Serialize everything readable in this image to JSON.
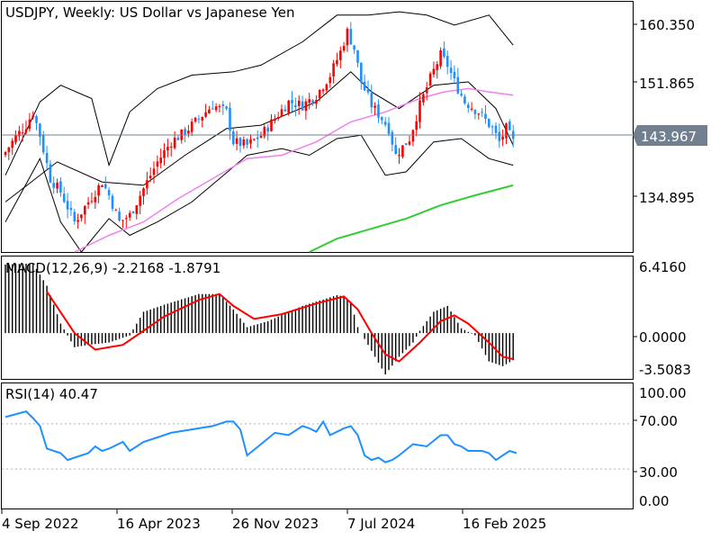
{
  "main": {
    "title": "USDJPY, Weekly:  US Dollar vs Japanese Yen",
    "yticks": [
      "160.350",
      "151.865",
      "134.895"
    ],
    "current_price": "143.967"
  },
  "macd": {
    "title": "MACD(12,26,9) -2.2168 -1.8791",
    "yticks": [
      "6.4160",
      "0.0000",
      "-3.5083"
    ]
  },
  "rsi": {
    "title": "RSI(14) 40.47",
    "yticks": [
      "100.00",
      "70.00",
      "30.00",
      "0.00"
    ]
  },
  "xaxis": {
    "labels": [
      "4 Sep 2022",
      "16 Apr 2023",
      "26 Nov 2023",
      "7 Jul 2024",
      "16 Feb 2025"
    ]
  },
  "colors": {
    "bull_candle": "#ff0000",
    "bear_candle": "#1e90ff",
    "bollinger": "#000000",
    "ma_pink": "#ee82ee",
    "ma_green": "#32cd32",
    "macd_hist": "#000000",
    "macd_signal": "#ff0000",
    "rsi_line": "#1e90ff",
    "price_tag_bg": "#708090"
  },
  "chart_data": [
    {
      "type": "candlestick",
      "title": "USDJPY, Weekly:  US Dollar vs Japanese Yen",
      "ylim": [
        127.5,
        165.0
      ],
      "close_path": [
        [
          0,
          142.5
        ],
        [
          3,
          144.8
        ],
        [
          6,
          146.5
        ],
        [
          8,
          148.5
        ],
        [
          10,
          145.0
        ],
        [
          13,
          138.5
        ],
        [
          16,
          136.5
        ],
        [
          20,
          132.0
        ],
        [
          24,
          135.0
        ],
        [
          28,
          138.0
        ],
        [
          30,
          136.0
        ],
        [
          33,
          132.0
        ],
        [
          36,
          133.0
        ],
        [
          40,
          137.0
        ],
        [
          44,
          141.0
        ],
        [
          48,
          144.0
        ],
        [
          52,
          145.5
        ],
        [
          56,
          147.5
        ],
        [
          60,
          149.5
        ],
        [
          64,
          148.5
        ],
        [
          66,
          144.0
        ],
        [
          70,
          143.5
        ],
        [
          74,
          145.0
        ],
        [
          78,
          147.5
        ],
        [
          82,
          150.0
        ],
        [
          86,
          149.5
        ],
        [
          90,
          151.0
        ],
        [
          94,
          154.0
        ],
        [
          97,
          157.5
        ],
        [
          99,
          160.5
        ],
        [
          101,
          158.0
        ],
        [
          103,
          153.0
        ],
        [
          106,
          149.5
        ],
        [
          109,
          147.5
        ],
        [
          111,
          146.0
        ],
        [
          113,
          142.0
        ],
        [
          117,
          144.5
        ],
        [
          120,
          149.5
        ],
        [
          123,
          153.5
        ],
        [
          126,
          157.0
        ],
        [
          128,
          155.5
        ],
        [
          130,
          153.0
        ],
        [
          133,
          150.0
        ],
        [
          137,
          148.5
        ],
        [
          141,
          146.0
        ],
        [
          143,
          144.0
        ],
        [
          145,
          146.0
        ],
        [
          147,
          144.0
        ]
      ],
      "bollinger_mid": [
        [
          0,
          135.0
        ],
        [
          15,
          141.0
        ],
        [
          28,
          138.0
        ],
        [
          40,
          137.5
        ],
        [
          52,
          142.0
        ],
        [
          64,
          146.0
        ],
        [
          74,
          146.5
        ],
        [
          90,
          150.0
        ],
        [
          100,
          154.5
        ],
        [
          106,
          151.5
        ],
        [
          114,
          149.0
        ],
        [
          124,
          152.5
        ],
        [
          134,
          153.0
        ],
        [
          142,
          149.0
        ],
        [
          147,
          143.5
        ]
      ],
      "bollinger_upper": [
        [
          0,
          139.0
        ],
        [
          10,
          150.0
        ],
        [
          16,
          152.5
        ],
        [
          25,
          150.5
        ],
        [
          30,
          140.5
        ],
        [
          36,
          148.5
        ],
        [
          44,
          152.0
        ],
        [
          54,
          154.0
        ],
        [
          66,
          154.5
        ],
        [
          74,
          155.5
        ],
        [
          86,
          159.0
        ],
        [
          96,
          163.0
        ],
        [
          105,
          163.0
        ],
        [
          114,
          163.5
        ],
        [
          122,
          163.0
        ],
        [
          130,
          161.5
        ],
        [
          140,
          163.0
        ],
        [
          147,
          158.5
        ]
      ],
      "bollinger_lower": [
        [
          0,
          132.0
        ],
        [
          10,
          141.5
        ],
        [
          16,
          132.0
        ],
        [
          22,
          127.5
        ],
        [
          30,
          132.5
        ],
        [
          36,
          130.0
        ],
        [
          44,
          132.0
        ],
        [
          54,
          135.0
        ],
        [
          62,
          138.5
        ],
        [
          70,
          142.0
        ],
        [
          80,
          143.0
        ],
        [
          88,
          142.0
        ],
        [
          96,
          144.5
        ],
        [
          103,
          145.0
        ],
        [
          110,
          139.0
        ],
        [
          116,
          139.5
        ],
        [
          124,
          144.0
        ],
        [
          132,
          144.5
        ],
        [
          140,
          141.5
        ],
        [
          147,
          140.5
        ]
      ],
      "ma_pink": [
        [
          20,
          127.5
        ],
        [
          30,
          130.0
        ],
        [
          40,
          132.0
        ],
        [
          50,
          135.5
        ],
        [
          60,
          138.5
        ],
        [
          70,
          141.5
        ],
        [
          80,
          142.0
        ],
        [
          90,
          144.0
        ],
        [
          100,
          147.0
        ],
        [
          110,
          148.5
        ],
        [
          120,
          150.5
        ],
        [
          127,
          151.5
        ],
        [
          134,
          152.0
        ],
        [
          140,
          151.5
        ],
        [
          147,
          151.0
        ]
      ],
      "ma_green": [
        [
          88,
          127.5
        ],
        [
          96,
          129.5
        ],
        [
          106,
          131.0
        ],
        [
          116,
          132.5
        ],
        [
          126,
          134.5
        ],
        [
          136,
          136.0
        ],
        [
          147,
          137.5
        ]
      ]
    },
    {
      "type": "macd",
      "title": "MACD(12,26,9) -2.2168 -1.8791",
      "ylim": [
        -3.8,
        6.4
      ],
      "histogram": [
        [
          0,
          5.8
        ],
        [
          8,
          5.9
        ],
        [
          12,
          4.0
        ],
        [
          16,
          0.8
        ],
        [
          20,
          -1.2
        ],
        [
          24,
          -1.0
        ],
        [
          30,
          -0.8
        ],
        [
          36,
          -0.2
        ],
        [
          40,
          1.8
        ],
        [
          46,
          2.4
        ],
        [
          56,
          3.3
        ],
        [
          62,
          3.3
        ],
        [
          66,
          2.0
        ],
        [
          70,
          0.5
        ],
        [
          76,
          1.0
        ],
        [
          86,
          2.3
        ],
        [
          96,
          3.2
        ],
        [
          98,
          3.1
        ],
        [
          100,
          2.6
        ],
        [
          102,
          0.5
        ],
        [
          106,
          -1.5
        ],
        [
          110,
          -3.5
        ],
        [
          114,
          -2.0
        ],
        [
          118,
          -0.8
        ],
        [
          120,
          0.2
        ],
        [
          124,
          1.8
        ],
        [
          128,
          2.3
        ],
        [
          132,
          0.4
        ],
        [
          136,
          -0.2
        ],
        [
          140,
          -2.4
        ],
        [
          144,
          -2.8
        ],
        [
          147,
          -2.3
        ]
      ],
      "signal": [
        [
          12,
          3.5
        ],
        [
          20,
          0.0
        ],
        [
          26,
          -1.4
        ],
        [
          34,
          -1.0
        ],
        [
          40,
          0.2
        ],
        [
          46,
          1.4
        ],
        [
          56,
          2.8
        ],
        [
          62,
          3.3
        ],
        [
          66,
          2.3
        ],
        [
          72,
          1.2
        ],
        [
          80,
          1.6
        ],
        [
          90,
          2.5
        ],
        [
          98,
          3.1
        ],
        [
          102,
          2.0
        ],
        [
          106,
          0.0
        ],
        [
          110,
          -1.8
        ],
        [
          114,
          -2.4
        ],
        [
          120,
          -0.8
        ],
        [
          126,
          1.0
        ],
        [
          130,
          1.5
        ],
        [
          134,
          0.8
        ],
        [
          140,
          -0.8
        ],
        [
          144,
          -2.0
        ],
        [
          147,
          -2.2
        ]
      ]
    },
    {
      "type": "line",
      "title": "RSI(14) 40.47",
      "ylim": [
        -5,
        105
      ],
      "levels": [
        70,
        30
      ],
      "x": [
        0,
        6,
        8,
        10,
        12,
        16,
        18,
        20,
        24,
        26,
        28,
        30,
        34,
        36,
        40,
        44,
        48,
        52,
        56,
        60,
        62,
        64,
        66,
        68,
        70,
        74,
        78,
        82,
        86,
        88,
        90,
        92,
        94,
        98,
        100,
        102,
        104,
        106,
        108,
        110,
        112,
        114,
        118,
        122,
        126,
        128,
        130,
        132,
        134,
        138,
        140,
        142,
        144,
        146,
        148
      ],
      "rsi": [
        76,
        81,
        75,
        68,
        48,
        44,
        38,
        40,
        44,
        50,
        46,
        48,
        54,
        46,
        54,
        58,
        62,
        64,
        66,
        68,
        70,
        72,
        72,
        65,
        42,
        52,
        62,
        60,
        68,
        66,
        63,
        72,
        60,
        66,
        68,
        60,
        42,
        38,
        40,
        36,
        38,
        42,
        52,
        50,
        60,
        60,
        52,
        50,
        46,
        46,
        44,
        38,
        42,
        46,
        44
      ]
    }
  ]
}
